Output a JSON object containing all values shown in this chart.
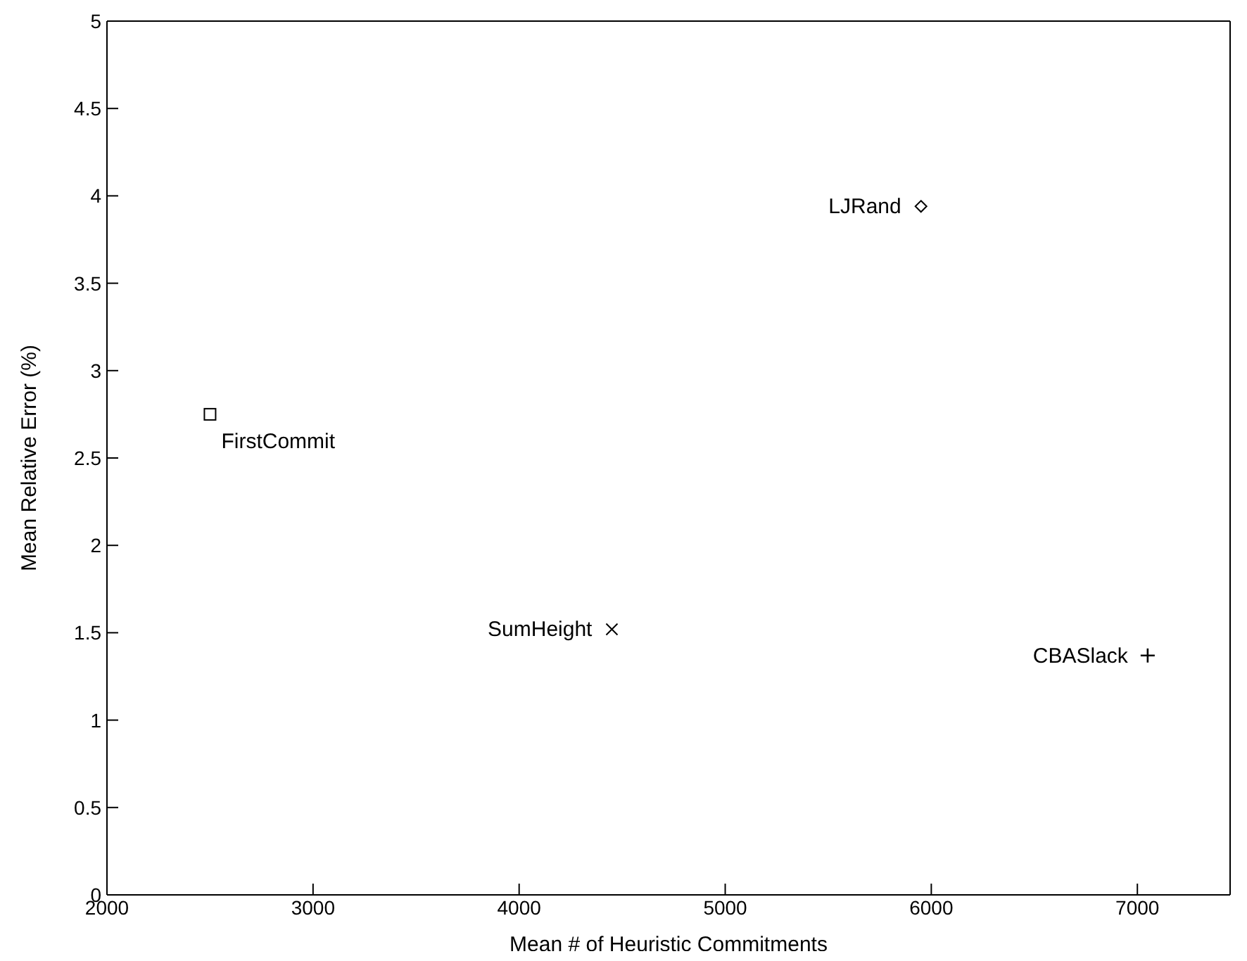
{
  "chart_data": {
    "type": "scatter",
    "xlabel": "Mean # of Heuristic Commitments",
    "ylabel": "Mean Relative Error (%)",
    "xlim": [
      2000,
      7450
    ],
    "xticks": [
      2000,
      3000,
      4000,
      5000,
      6000,
      7000
    ],
    "ylim": [
      0,
      5
    ],
    "yticks": [
      0,
      0.5,
      1,
      1.5,
      2,
      2.5,
      3,
      3.5,
      4,
      4.5,
      5
    ],
    "legend": false,
    "series": [
      {
        "name": "FirstCommit",
        "color": "#000000",
        "marker": "square",
        "x": [
          2500
        ],
        "values": [
          2.75
        ]
      },
      {
        "name": "LJRand",
        "color": "#000000",
        "marker": "diamond",
        "x": [
          5950
        ],
        "values": [
          3.94
        ]
      },
      {
        "name": "SumHeight",
        "color": "#000000",
        "marker": "cross",
        "x": [
          4450
        ],
        "values": [
          1.52
        ]
      },
      {
        "name": "CBASlack",
        "color": "#000000",
        "marker": "plus",
        "x": [
          7050
        ],
        "values": [
          1.37
        ]
      }
    ]
  }
}
